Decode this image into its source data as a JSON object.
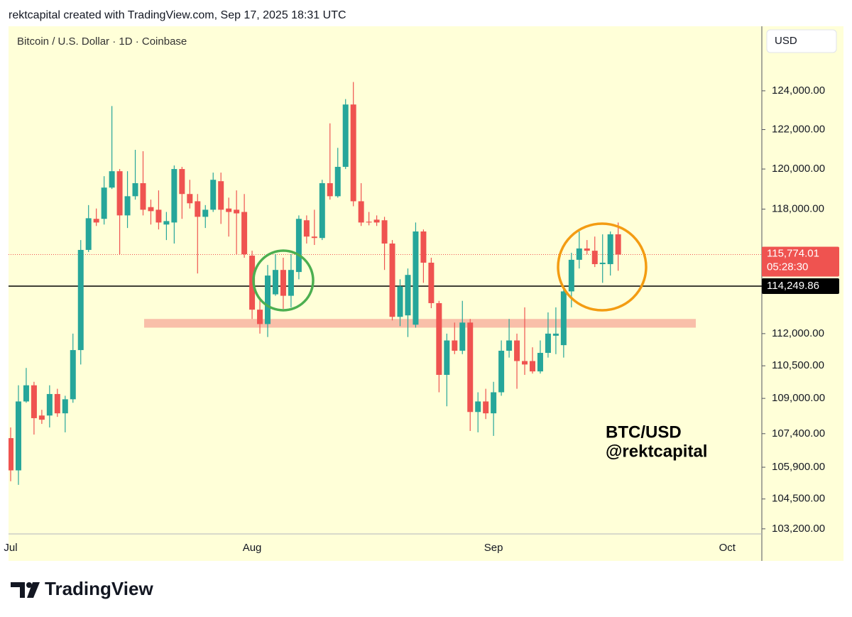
{
  "header": "rektcapital created with TradingView.com, Sep 17, 2025 18:31 UTC",
  "footer": {
    "brand": "TradingView"
  },
  "chart_data": {
    "type": "candlestick",
    "title": "Bitcoin / U.S. Dollar · 1D · Coinbase",
    "currency": "USD",
    "annotations": [
      "BTC/USD",
      "@rektcapital"
    ],
    "log_scale": true,
    "grid": false,
    "up_color": "#26a69a",
    "down_color": "#ef5350",
    "categories": [
      "Jul",
      null,
      null,
      null,
      null,
      null,
      null,
      null,
      null,
      null,
      null,
      null,
      null,
      null,
      null,
      null,
      null,
      null,
      null,
      null,
      null,
      null,
      null,
      null,
      null,
      null,
      null,
      null,
      null,
      null,
      null,
      "Aug",
      null,
      null,
      null,
      null,
      null,
      null,
      null,
      null,
      null,
      null,
      null,
      null,
      null,
      null,
      null,
      null,
      null,
      null,
      null,
      null,
      null,
      null,
      null,
      null,
      null,
      null,
      null,
      null,
      null,
      null,
      "Sep",
      null,
      null,
      null,
      null,
      null,
      null,
      null,
      null,
      null,
      null,
      null,
      null,
      null,
      null,
      null,
      null,
      null,
      null,
      null,
      null,
      null,
      null,
      null,
      null,
      null,
      null,
      null,
      null,
      null,
      "Oct"
    ],
    "open": [
      107200,
      105760,
      108860,
      109600,
      108220,
      108220,
      109200,
      108320,
      108960,
      111230,
      116000,
      117520,
      117520,
      119070,
      119890,
      117690,
      118640,
      119290,
      118100,
      117970,
      117240,
      117340,
      120000,
      118750,
      118390,
      117620,
      117970,
      119390,
      118030,
      117970,
      117860,
      115720,
      113130,
      112450,
      113860,
      115030,
      113790,
      114930,
      117450,
      116650,
      116580,
      119290,
      118640,
      120110,
      123290,
      118390,
      117380,
      117480,
      117450,
      116310,
      112790,
      112860,
      112420,
      116900,
      115380,
      113440,
      110080,
      111680,
      111200,
      112520,
      108380,
      108860,
      108320,
      109280,
      111200,
      111680,
      110720,
      110720,
      110240,
      111100,
      111900,
      111460,
      114000,
      115520,
      116070,
      115960,
      115310,
      115310,
      116760,
      null,
      null,
      null,
      null,
      null,
      null,
      null,
      null,
      null,
      null,
      null,
      null,
      null,
      null
    ],
    "high": [
      107680,
      109600,
      110400,
      109760,
      108480,
      109600,
      109440,
      109120,
      112000,
      116480,
      118200,
      118030,
      119640,
      123210,
      120000,
      119890,
      120970,
      120900,
      118470,
      118930,
      117860,
      120180,
      120110,
      119460,
      118750,
      118200,
      119820,
      119820,
      118570,
      118930,
      118750,
      115960,
      113720,
      115270,
      115790,
      115620,
      115790,
      117690,
      117690,
      117970,
      119460,
      122320,
      121070,
      123570,
      124460,
      119290,
      117860,
      117690,
      117620,
      116480,
      114580,
      115100,
      117340,
      117000,
      115620,
      113550,
      112000,
      112520,
      113550,
      112690,
      109280,
      109440,
      109760,
      111680,
      112690,
      112000,
      113240,
      111360,
      111680,
      113000,
      113240,
      114240,
      115860,
      116900,
      116480,
      116650,
      116760,
      116900,
      117340,
      null,
      null,
      null,
      null,
      null,
      null,
      null,
      null,
      null,
      null,
      null,
      null,
      null,
      null
    ],
    "low": [
      105280,
      105120,
      108800,
      107360,
      107840,
      107680,
      108160,
      107460,
      108800,
      110560,
      115900,
      117170,
      117240,
      119000,
      115790,
      117070,
      118470,
      117690,
      117240,
      117000,
      116480,
      116310,
      117520,
      118030,
      114860,
      117070,
      117860,
      117270,
      116650,
      115790,
      115620,
      112690,
      112000,
      111840,
      113790,
      113170,
      113240,
      114580,
      116310,
      116240,
      116480,
      118470,
      118570,
      120000,
      118140,
      117170,
      117200,
      117170,
      115030,
      112620,
      112350,
      111840,
      112280,
      114410,
      113200,
      109280,
      108640,
      111040,
      111040,
      107520,
      107460,
      108060,
      107300,
      109120,
      110880,
      109440,
      110080,
      110140,
      110140,
      110880,
      111040,
      110880,
      113240,
      115100,
      115790,
      115170,
      114410,
      114760,
      114990,
      null,
      null,
      null,
      null,
      null,
      null,
      null,
      null,
      null,
      null,
      null,
      null,
      null,
      null
    ],
    "close": [
      105760,
      108860,
      109600,
      108100,
      108030,
      109200,
      108320,
      108960,
      111230,
      116000,
      117550,
      117340,
      119070,
      119890,
      117690,
      118640,
      119290,
      117970,
      117900,
      117340,
      117410,
      120000,
      118750,
      118290,
      117620,
      117970,
      119460,
      117970,
      117860,
      117790,
      115790,
      113130,
      112450,
      114760,
      115030,
      113790,
      115030,
      117520,
      116650,
      116580,
      119290,
      118640,
      120110,
      123290,
      118390,
      117340,
      117340,
      117340,
      116310,
      112790,
      114240,
      114790,
      116900,
      115380,
      113440,
      110080,
      111680,
      111200,
      112520,
      108380,
      108860,
      108320,
      109280,
      111200,
      111680,
      110720,
      110560,
      110240,
      111100,
      112000,
      112000,
      114000,
      115520,
      116070,
      115960,
      115310,
      115380,
      116760,
      115774.01,
      null,
      null,
      null,
      null,
      null,
      null,
      null,
      null,
      null,
      null,
      null,
      null,
      null,
      null
    ],
    "ylim": [
      102980,
      127400
    ],
    "yticks": [
      {
        "value": 124000,
        "label": "124,000.00"
      },
      {
        "value": 122000,
        "label": "122,000.00"
      },
      {
        "value": 120000,
        "label": "120,000.00"
      },
      {
        "value": 118000,
        "label": "118,000.00"
      },
      {
        "value": 112000,
        "label": "112,000.00"
      },
      {
        "value": 110500,
        "label": "110,500.00"
      },
      {
        "value": 109000,
        "label": "109,000.00"
      },
      {
        "value": 107400,
        "label": "107,400.00"
      },
      {
        "value": 105900,
        "label": "105,900.00"
      },
      {
        "value": 104500,
        "label": "104,500.00"
      },
      {
        "value": 103200,
        "label": "103,200.00"
      }
    ],
    "last_price": {
      "value": 115774.01,
      "label": "115,774.01",
      "countdown": "05:28:30",
      "color": "#ef5350"
    },
    "line_price": {
      "value": 114249.86,
      "label": "114,249.86",
      "color": "#000000"
    },
    "support_zone": [
      112280,
      112690
    ]
  }
}
